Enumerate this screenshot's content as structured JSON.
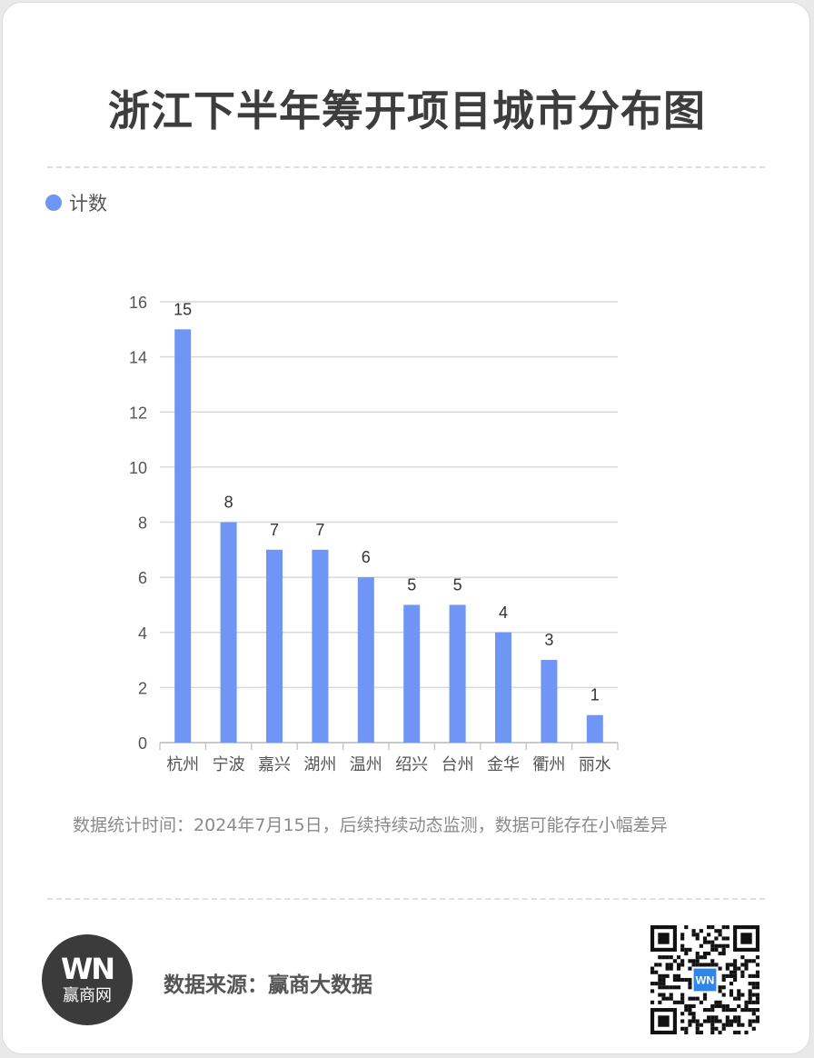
{
  "title": "浙江下半年筹开项目城市分布图",
  "legend": {
    "label": "计数"
  },
  "colors": {
    "bar": "#6f96f5",
    "grid": "#d9d9d9",
    "axis": "#555555"
  },
  "chart_data": {
    "type": "bar",
    "categories": [
      "杭州",
      "宁波",
      "嘉兴",
      "湖州",
      "温州",
      "绍兴",
      "台州",
      "金华",
      "衢州",
      "丽水"
    ],
    "series": [
      {
        "name": "计数",
        "values": [
          15,
          8,
          7,
          7,
          6,
          5,
          5,
          4,
          3,
          1
        ]
      }
    ],
    "ylim": [
      0,
      16
    ],
    "yticks": [
      0,
      2,
      4,
      6,
      8,
      10,
      12,
      14,
      16
    ],
    "grid": true,
    "data_labels": true,
    "legend_position": "top-left"
  },
  "note": "数据统计时间：2024年7月15日，后续持续动态监测，数据可能存在小幅差异",
  "footer": {
    "logo_mark": "WN",
    "logo_text": "赢商网",
    "source": "数据来源：赢商大数据",
    "qr_badge": "WN"
  }
}
